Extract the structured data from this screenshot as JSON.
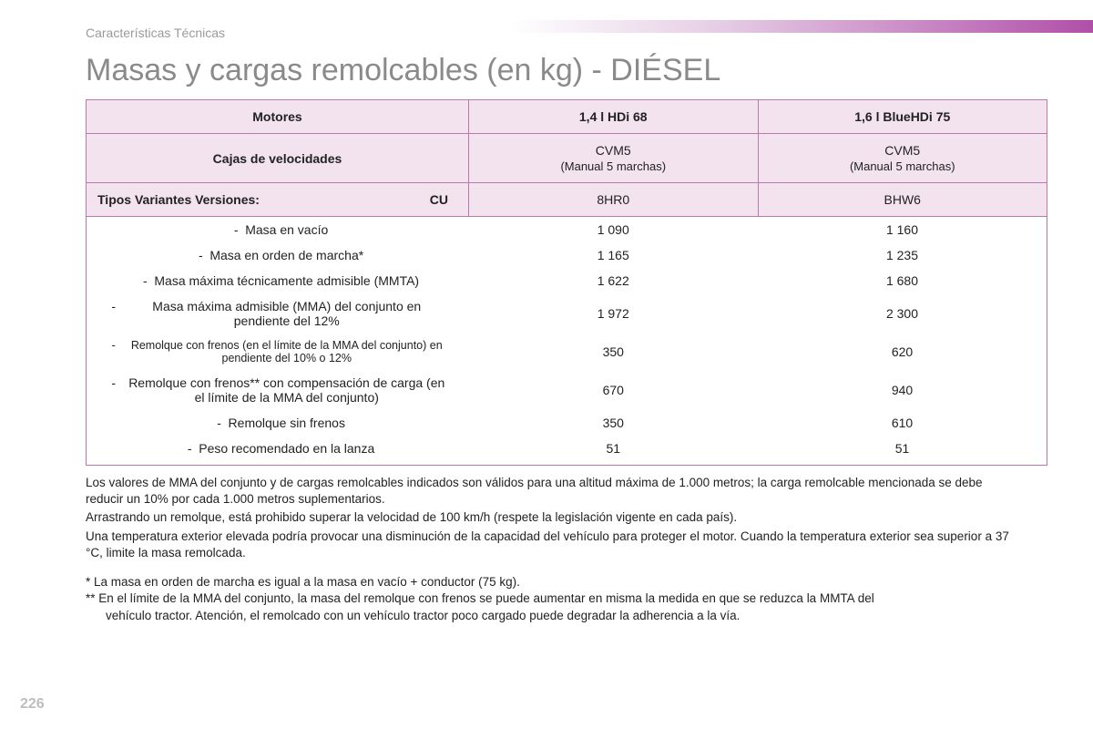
{
  "header": {
    "section_label": "Características Técnicas",
    "title": "Masas y cargas remolcables (en kg) - DIÉSEL"
  },
  "table": {
    "col_widths": {
      "label": "420px",
      "val": "auto"
    },
    "header_bg": "#f2e3ef",
    "border_color": "#b979b0",
    "rows_header": [
      {
        "label": "Motores",
        "c1": "1,4 l HDi 68",
        "c2": "1,6 l BlueHDi 75"
      },
      {
        "label": "Cajas de velocidades",
        "c1": "CVM5",
        "c1_sub": "(Manual 5 marchas)",
        "c2": "CVM5",
        "c2_sub": "(Manual 5 marchas)"
      },
      {
        "label": "Tipos Variantes Versiones:",
        "cu": "CU",
        "c1": "8HR0",
        "c2": "BHW6"
      }
    ],
    "rows_data": [
      {
        "label": "Masa en vacío",
        "c1": "1 090",
        "c2": "1 160"
      },
      {
        "label": "Masa en orden de marcha*",
        "c1": "1 165",
        "c2": "1 235"
      },
      {
        "label": "Masa máxima técnicamente admisible (MMTA)",
        "c1": "1 622",
        "c2": "1 680"
      },
      {
        "label": "Masa máxima admisible (MMA) del conjunto en pendiente del 12%",
        "c1": "1 972",
        "c2": "2 300"
      },
      {
        "label": "Remolque con frenos (en el límite de la MMA del conjunto) en pendiente del 10% o 12%",
        "c1": "350",
        "c2": "620",
        "small": true
      },
      {
        "label": "Remolque con frenos** con compensación de carga (en el límite de la MMA del conjunto)",
        "c1": "670",
        "c2": "940"
      },
      {
        "label": "Remolque sin frenos",
        "c1": "350",
        "c2": "610"
      },
      {
        "label": "Peso recomendado en la lanza",
        "c1": "51",
        "c2": "51"
      }
    ]
  },
  "notes": {
    "p1": "Los valores de MMA del conjunto y de cargas remolcables indicados son válidos para una altitud máxima de 1.000 metros; la carga remolcable mencionada se debe reducir un 10% por cada 1.000 metros suplementarios.",
    "p2": "Arrastrando un remolque, está prohibido superar la velocidad de 100 km/h (respete la legislación vigente en cada país).",
    "p3": "Una temperatura exterior elevada podría provocar una disminución de la capacidad del vehículo para proteger el motor. Cuando la temperatura exterior sea superior a 37 °C, limite la masa remolcada."
  },
  "footnotes": {
    "f1": "* La masa en orden de marcha es igual a la masa en vacío + conductor (75 kg).",
    "f2a": "** En el límite de la MMA del conjunto, la masa del remolque con frenos se puede aumentar en misma la medida en que se reduzca la MMTA del",
    "f2b": "vehículo tractor. Atención, el remolcado con un vehículo tractor poco cargado puede degradar la adherencia a la vía."
  },
  "page_number": "226"
}
